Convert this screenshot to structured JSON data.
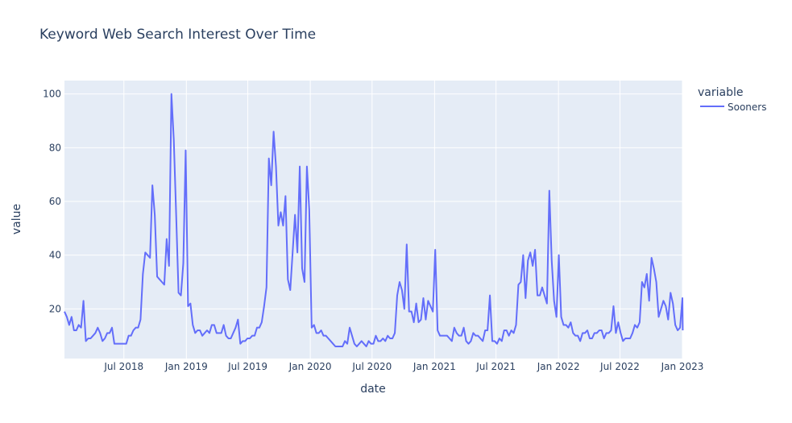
{
  "chart_data": {
    "type": "line",
    "title": "Keyword Web Search Interest Over Time",
    "xlabel": "date",
    "ylabel": "value",
    "xlim": [
      "2018-01-07",
      "2023-01-01"
    ],
    "ylim": [
      1.5,
      105
    ],
    "x_ticks": [
      "2018-07-01",
      "2019-01-01",
      "2019-07-01",
      "2020-01-01",
      "2020-07-01",
      "2021-01-01",
      "2021-07-01",
      "2022-01-01",
      "2022-07-01",
      "2023-01-01"
    ],
    "x_tick_labels": [
      "Jul 2018",
      "Jan 2019",
      "Jul 2019",
      "Jan 2020",
      "Jul 2020",
      "Jan 2021",
      "Jul 2021",
      "Jan 2022",
      "Jul 2022",
      "Jan 2023"
    ],
    "y_ticks": [
      20,
      40,
      60,
      80,
      100
    ],
    "grid": true,
    "legend": {
      "title": "variable",
      "position": "right"
    },
    "series": [
      {
        "name": "Sooners",
        "color": "#636efa",
        "values": [
          [
            "2018-01-07",
            19
          ],
          [
            "2018-01-14",
            17
          ],
          [
            "2018-01-21",
            14
          ],
          [
            "2018-01-28",
            17
          ],
          [
            "2018-02-04",
            12
          ],
          [
            "2018-02-11",
            12
          ],
          [
            "2018-02-18",
            14
          ],
          [
            "2018-02-25",
            13
          ],
          [
            "2018-03-04",
            23
          ],
          [
            "2018-03-11",
            8
          ],
          [
            "2018-03-18",
            9
          ],
          [
            "2018-03-25",
            9
          ],
          [
            "2018-04-01",
            10
          ],
          [
            "2018-04-08",
            11
          ],
          [
            "2018-04-15",
            13
          ],
          [
            "2018-04-22",
            11
          ],
          [
            "2018-04-29",
            8
          ],
          [
            "2018-05-06",
            9
          ],
          [
            "2018-05-13",
            11
          ],
          [
            "2018-05-20",
            11
          ],
          [
            "2018-05-27",
            13
          ],
          [
            "2018-06-03",
            7
          ],
          [
            "2018-06-10",
            7
          ],
          [
            "2018-06-17",
            7
          ],
          [
            "2018-06-24",
            7
          ],
          [
            "2018-07-01",
            7
          ],
          [
            "2018-07-08",
            7
          ],
          [
            "2018-07-15",
            10
          ],
          [
            "2018-07-22",
            10
          ],
          [
            "2018-07-29",
            12
          ],
          [
            "2018-08-05",
            13
          ],
          [
            "2018-08-12",
            13
          ],
          [
            "2018-08-19",
            16
          ],
          [
            "2018-08-26",
            33
          ],
          [
            "2018-09-02",
            41
          ],
          [
            "2018-09-09",
            40
          ],
          [
            "2018-09-16",
            39
          ],
          [
            "2018-09-23",
            66
          ],
          [
            "2018-09-30",
            55
          ],
          [
            "2018-10-07",
            32
          ],
          [
            "2018-10-14",
            31
          ],
          [
            "2018-10-21",
            30
          ],
          [
            "2018-10-28",
            29
          ],
          [
            "2018-11-04",
            46
          ],
          [
            "2018-11-11",
            36
          ],
          [
            "2018-11-18",
            100
          ],
          [
            "2018-11-25",
            83
          ],
          [
            "2018-12-02",
            55
          ],
          [
            "2018-12-09",
            26
          ],
          [
            "2018-12-16",
            25
          ],
          [
            "2018-12-23",
            37
          ],
          [
            "2018-12-30",
            79
          ],
          [
            "2019-01-06",
            21
          ],
          [
            "2019-01-13",
            22
          ],
          [
            "2019-01-20",
            14
          ],
          [
            "2019-01-27",
            11
          ],
          [
            "2019-02-03",
            12
          ],
          [
            "2019-02-10",
            12
          ],
          [
            "2019-02-17",
            10
          ],
          [
            "2019-02-24",
            11
          ],
          [
            "2019-03-03",
            12
          ],
          [
            "2019-03-10",
            11
          ],
          [
            "2019-03-17",
            14
          ],
          [
            "2019-03-24",
            14
          ],
          [
            "2019-03-31",
            11
          ],
          [
            "2019-04-07",
            11
          ],
          [
            "2019-04-14",
            11
          ],
          [
            "2019-04-21",
            14
          ],
          [
            "2019-04-28",
            10
          ],
          [
            "2019-05-05",
            9
          ],
          [
            "2019-05-12",
            9
          ],
          [
            "2019-05-19",
            11
          ],
          [
            "2019-05-26",
            13
          ],
          [
            "2019-06-02",
            16
          ],
          [
            "2019-06-09",
            7
          ],
          [
            "2019-06-16",
            8
          ],
          [
            "2019-06-23",
            8
          ],
          [
            "2019-06-30",
            9
          ],
          [
            "2019-07-07",
            9
          ],
          [
            "2019-07-14",
            10
          ],
          [
            "2019-07-21",
            10
          ],
          [
            "2019-07-28",
            13
          ],
          [
            "2019-08-04",
            13
          ],
          [
            "2019-08-11",
            15
          ],
          [
            "2019-08-18",
            21
          ],
          [
            "2019-08-25",
            28
          ],
          [
            "2019-09-01",
            76
          ],
          [
            "2019-09-08",
            66
          ],
          [
            "2019-09-15",
            86
          ],
          [
            "2019-09-22",
            73
          ],
          [
            "2019-09-29",
            51
          ],
          [
            "2019-10-06",
            56
          ],
          [
            "2019-10-13",
            51
          ],
          [
            "2019-10-20",
            62
          ],
          [
            "2019-10-27",
            31
          ],
          [
            "2019-11-03",
            27
          ],
          [
            "2019-11-10",
            41
          ],
          [
            "2019-11-17",
            55
          ],
          [
            "2019-11-24",
            41
          ],
          [
            "2019-12-01",
            73
          ],
          [
            "2019-12-08",
            35
          ],
          [
            "2019-12-15",
            30
          ],
          [
            "2019-12-22",
            73
          ],
          [
            "2019-12-29",
            57
          ],
          [
            "2020-01-05",
            13
          ],
          [
            "2020-01-12",
            14
          ],
          [
            "2020-01-19",
            11
          ],
          [
            "2020-01-26",
            11
          ],
          [
            "2020-02-02",
            12
          ],
          [
            "2020-02-09",
            10
          ],
          [
            "2020-02-16",
            10
          ],
          [
            "2020-02-23",
            9
          ],
          [
            "2020-03-01",
            8
          ],
          [
            "2020-03-08",
            7
          ],
          [
            "2020-03-15",
            6
          ],
          [
            "2020-03-22",
            6
          ],
          [
            "2020-03-29",
            6
          ],
          [
            "2020-04-05",
            6
          ],
          [
            "2020-04-12",
            8
          ],
          [
            "2020-04-19",
            7
          ],
          [
            "2020-04-26",
            13
          ],
          [
            "2020-05-03",
            10
          ],
          [
            "2020-05-10",
            7
          ],
          [
            "2020-05-17",
            6
          ],
          [
            "2020-05-24",
            7
          ],
          [
            "2020-05-31",
            8
          ],
          [
            "2020-06-07",
            7
          ],
          [
            "2020-06-14",
            6
          ],
          [
            "2020-06-21",
            8
          ],
          [
            "2020-06-28",
            7
          ],
          [
            "2020-07-05",
            7
          ],
          [
            "2020-07-12",
            10
          ],
          [
            "2020-07-19",
            8
          ],
          [
            "2020-07-26",
            8
          ],
          [
            "2020-08-02",
            9
          ],
          [
            "2020-08-09",
            8
          ],
          [
            "2020-08-16",
            10
          ],
          [
            "2020-08-23",
            9
          ],
          [
            "2020-08-30",
            9
          ],
          [
            "2020-09-06",
            11
          ],
          [
            "2020-09-13",
            25
          ],
          [
            "2020-09-20",
            30
          ],
          [
            "2020-09-27",
            27
          ],
          [
            "2020-10-04",
            20
          ],
          [
            "2020-10-11",
            44
          ],
          [
            "2020-10-18",
            19
          ],
          [
            "2020-10-25",
            19
          ],
          [
            "2020-11-01",
            15
          ],
          [
            "2020-11-08",
            22
          ],
          [
            "2020-11-15",
            15
          ],
          [
            "2020-11-22",
            16
          ],
          [
            "2020-11-29",
            24
          ],
          [
            "2020-12-06",
            16
          ],
          [
            "2020-12-13",
            23
          ],
          [
            "2020-12-20",
            21
          ],
          [
            "2020-12-27",
            19
          ],
          [
            "2021-01-03",
            42
          ],
          [
            "2021-01-10",
            12
          ],
          [
            "2021-01-17",
            10
          ],
          [
            "2021-01-24",
            10
          ],
          [
            "2021-01-31",
            10
          ],
          [
            "2021-02-07",
            10
          ],
          [
            "2021-02-14",
            9
          ],
          [
            "2021-02-21",
            8
          ],
          [
            "2021-02-28",
            13
          ],
          [
            "2021-03-07",
            11
          ],
          [
            "2021-03-14",
            10
          ],
          [
            "2021-03-21",
            10
          ],
          [
            "2021-03-28",
            13
          ],
          [
            "2021-04-04",
            8
          ],
          [
            "2021-04-11",
            7
          ],
          [
            "2021-04-18",
            8
          ],
          [
            "2021-04-25",
            11
          ],
          [
            "2021-05-02",
            10
          ],
          [
            "2021-05-09",
            10
          ],
          [
            "2021-05-16",
            9
          ],
          [
            "2021-05-23",
            8
          ],
          [
            "2021-05-30",
            12
          ],
          [
            "2021-06-06",
            12
          ],
          [
            "2021-06-13",
            25
          ],
          [
            "2021-06-20",
            8
          ],
          [
            "2021-06-27",
            8
          ],
          [
            "2021-07-04",
            7
          ],
          [
            "2021-07-11",
            9
          ],
          [
            "2021-07-18",
            8
          ],
          [
            "2021-07-25",
            12
          ],
          [
            "2021-08-01",
            12
          ],
          [
            "2021-08-08",
            10
          ],
          [
            "2021-08-15",
            12
          ],
          [
            "2021-08-22",
            11
          ],
          [
            "2021-08-29",
            14
          ],
          [
            "2021-09-05",
            29
          ],
          [
            "2021-09-12",
            30
          ],
          [
            "2021-09-19",
            40
          ],
          [
            "2021-09-26",
            24
          ],
          [
            "2021-10-03",
            38
          ],
          [
            "2021-10-10",
            41
          ],
          [
            "2021-10-17",
            36
          ],
          [
            "2021-10-24",
            42
          ],
          [
            "2021-10-31",
            25
          ],
          [
            "2021-11-07",
            25
          ],
          [
            "2021-11-14",
            28
          ],
          [
            "2021-11-21",
            25
          ],
          [
            "2021-11-28",
            22
          ],
          [
            "2021-12-05",
            64
          ],
          [
            "2021-12-12",
            38
          ],
          [
            "2021-12-19",
            23
          ],
          [
            "2021-12-26",
            17
          ],
          [
            "2022-01-02",
            40
          ],
          [
            "2022-01-09",
            17
          ],
          [
            "2022-01-16",
            14
          ],
          [
            "2022-01-23",
            14
          ],
          [
            "2022-01-30",
            13
          ],
          [
            "2022-02-06",
            15
          ],
          [
            "2022-02-13",
            11
          ],
          [
            "2022-02-20",
            10
          ],
          [
            "2022-02-27",
            10
          ],
          [
            "2022-03-06",
            8
          ],
          [
            "2022-03-13",
            11
          ],
          [
            "2022-03-20",
            11
          ],
          [
            "2022-03-27",
            12
          ],
          [
            "2022-04-03",
            9
          ],
          [
            "2022-04-10",
            9
          ],
          [
            "2022-04-17",
            11
          ],
          [
            "2022-04-24",
            11
          ],
          [
            "2022-05-01",
            12
          ],
          [
            "2022-05-08",
            12
          ],
          [
            "2022-05-15",
            9
          ],
          [
            "2022-05-22",
            11
          ],
          [
            "2022-05-29",
            11
          ],
          [
            "2022-06-05",
            12
          ],
          [
            "2022-06-12",
            21
          ],
          [
            "2022-06-19",
            11
          ],
          [
            "2022-06-26",
            15
          ],
          [
            "2022-07-03",
            11
          ],
          [
            "2022-07-10",
            8
          ],
          [
            "2022-07-17",
            9
          ],
          [
            "2022-07-24",
            9
          ],
          [
            "2022-07-31",
            9
          ],
          [
            "2022-08-07",
            11
          ],
          [
            "2022-08-14",
            14
          ],
          [
            "2022-08-21",
            13
          ],
          [
            "2022-08-28",
            15
          ],
          [
            "2022-09-04",
            30
          ],
          [
            "2022-09-11",
            28
          ],
          [
            "2022-09-18",
            33
          ],
          [
            "2022-09-25",
            23
          ],
          [
            "2022-10-02",
            39
          ],
          [
            "2022-10-09",
            35
          ],
          [
            "2022-10-16",
            30
          ],
          [
            "2022-10-23",
            17
          ],
          [
            "2022-10-30",
            20
          ],
          [
            "2022-11-06",
            23
          ],
          [
            "2022-11-13",
            21
          ],
          [
            "2022-11-20",
            16
          ],
          [
            "2022-11-27",
            26
          ],
          [
            "2022-12-04",
            22
          ],
          [
            "2022-12-11",
            14
          ],
          [
            "2022-12-18",
            12
          ],
          [
            "2022-12-25",
            13
          ],
          [
            "2023-01-01",
            24
          ],
          [
            "2023-01-02",
            12
          ]
        ]
      }
    ]
  }
}
